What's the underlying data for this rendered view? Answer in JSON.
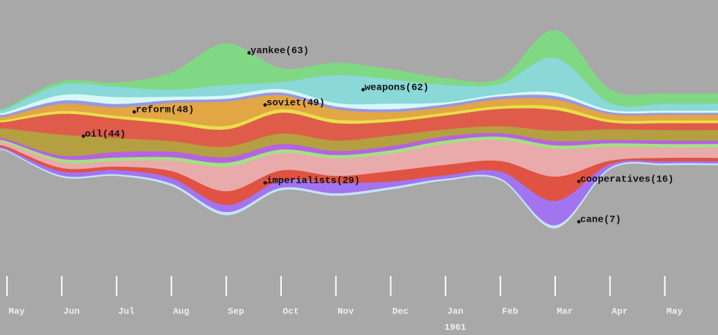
{
  "chart_data": {
    "type": "stream",
    "categories": [
      "May",
      "Jun",
      "Jul",
      "Aug",
      "Sep",
      "Oct",
      "Nov",
      "Dec",
      "Jan",
      "Feb",
      "Mar",
      "Apr",
      "May"
    ],
    "year_label": "1961",
    "annotations": [
      "yankee(63)",
      "reform(48)",
      "soviet(49)",
      "weapons(62)",
      "oil(44)",
      "imperialists(29)",
      "cooperatives(16)",
      "cane(7)"
    ],
    "series": [
      {
        "color": "#80d884",
        "values": [
          2,
          5,
          6,
          25,
          60,
          20,
          18,
          15,
          10,
          8,
          40,
          20,
          15
        ]
      },
      {
        "color": "#8ad8d8",
        "values": [
          5,
          15,
          15,
          10,
          15,
          10,
          40,
          35,
          25,
          15,
          50,
          10,
          10
        ]
      },
      {
        "color": "#d8f8f8",
        "values": [
          3,
          8,
          10,
          5,
          5,
          5,
          5,
          8,
          3,
          3,
          5,
          3,
          3
        ]
      },
      {
        "color": "#9898e0",
        "values": [
          3,
          5,
          5,
          4,
          4,
          4,
          4,
          4,
          4,
          4,
          5,
          3,
          3
        ]
      },
      {
        "color": "#e2a644",
        "values": [
          5,
          10,
          12,
          25,
          35,
          20,
          15,
          10,
          8,
          10,
          10,
          8,
          8
        ]
      },
      {
        "color": "#e8e048",
        "values": [
          3,
          4,
          4,
          5,
          5,
          5,
          5,
          4,
          4,
          4,
          5,
          4,
          4
        ]
      },
      {
        "color": "#e05c4a",
        "values": [
          10,
          30,
          28,
          25,
          25,
          30,
          25,
          20,
          20,
          25,
          30,
          10,
          10
        ]
      },
      {
        "color": "#b4a040",
        "values": [
          15,
          30,
          20,
          15,
          15,
          15,
          15,
          15,
          10,
          10,
          15,
          15,
          15
        ]
      },
      {
        "color": "#b464e0",
        "values": [
          3,
          5,
          8,
          8,
          8,
          8,
          6,
          6,
          6,
          5,
          6,
          5,
          5
        ]
      },
      {
        "color": "#a4e084",
        "values": [
          3,
          5,
          5,
          5,
          6,
          5,
          5,
          5,
          5,
          5,
          5,
          5,
          5
        ]
      },
      {
        "color": "#e8aaaa",
        "values": [
          5,
          8,
          8,
          15,
          35,
          25,
          25,
          25,
          30,
          30,
          40,
          20,
          15
        ]
      },
      {
        "color": "#e05242",
        "values": [
          3,
          5,
          5,
          10,
          20,
          15,
          10,
          15,
          15,
          15,
          35,
          5,
          5
        ]
      },
      {
        "color": "#a274f0",
        "values": [
          2,
          6,
          6,
          8,
          10,
          10,
          15,
          8,
          5,
          10,
          35,
          5,
          3
        ]
      },
      {
        "color": "#c4e4f8",
        "values": [
          1,
          2,
          2,
          3,
          4,
          3,
          3,
          3,
          2,
          2,
          4,
          2,
          2
        ]
      }
    ]
  }
}
